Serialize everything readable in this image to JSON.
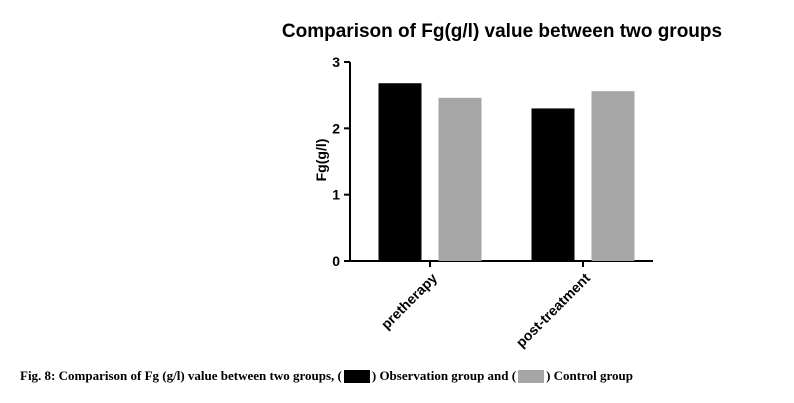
{
  "chart_data": {
    "type": "bar",
    "title": "Comparison of Fg(g/l) value between two groups",
    "xlabel": "",
    "ylabel": "Fg(g/l)",
    "ylim": [
      0,
      3
    ],
    "yticks": [
      "0",
      "1",
      "2",
      "3"
    ],
    "categories": [
      "pretherapy",
      "post-treatment"
    ],
    "series": [
      {
        "name": "Observation group",
        "color": "#000000",
        "values": [
          2.68,
          2.3
        ]
      },
      {
        "name": "Control group",
        "color": "#a6a6a6",
        "values": [
          2.46,
          2.56
        ]
      }
    ],
    "grid": false,
    "legend": "none"
  },
  "caption": {
    "prefix": "Fig. 8: Comparison of Fg (g/l) value between two groups, (",
    "middle": ") Observation group and (",
    "suffix": ") Control group"
  }
}
